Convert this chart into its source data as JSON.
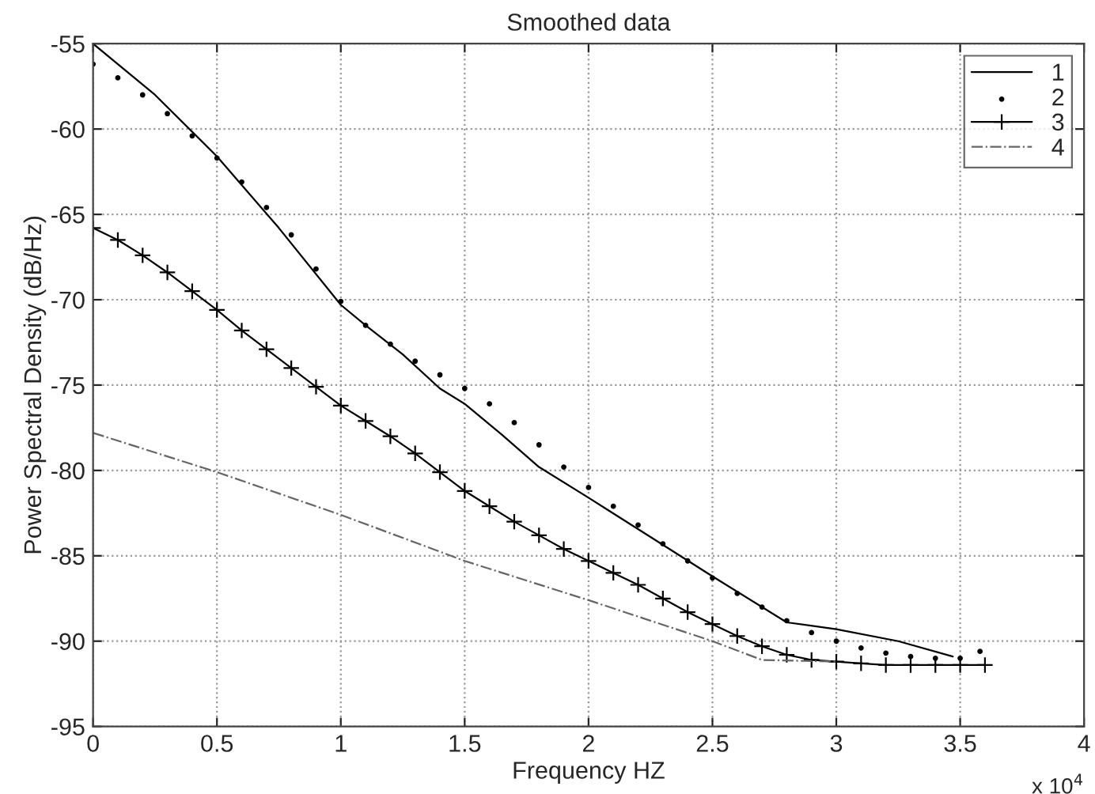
{
  "chart_data": {
    "type": "line",
    "title": "Smoothed data",
    "xlabel": "Frequency HZ",
    "ylabel": "Power Spectral Density (dB/Hz)",
    "xlim": [
      0,
      4
    ],
    "xticks": [
      0,
      0.5,
      1,
      1.5,
      2,
      2.5,
      3,
      3.5,
      4
    ],
    "ylim": [
      -95,
      -55
    ],
    "yticks": [
      -95,
      -90,
      -85,
      -80,
      -75,
      -70,
      -65,
      -60,
      -55
    ],
    "grid": true,
    "legend": "top right",
    "annotations": [
      "x 10$^{4}$"
    ],
    "series": [
      {
        "name": "1",
        "color": "#000000",
        "marker": "none",
        "line_style": "solid",
        "x": [
          0,
          0.25,
          0.5,
          0.75,
          1.0,
          1.1,
          1.25,
          1.4,
          1.5,
          1.65,
          1.8,
          2.0,
          2.25,
          2.5,
          2.8,
          3.0,
          3.25,
          3.47
        ],
        "values": [
          -55.0,
          -58.0,
          -61.6,
          -65.8,
          -70.3,
          -71.5,
          -73.2,
          -75.2,
          -76.1,
          -77.9,
          -79.8,
          -81.6,
          -83.9,
          -86.2,
          -88.9,
          -89.3,
          -90.0,
          -90.9
        ]
      },
      {
        "name": "2",
        "type": "scatter",
        "color": "#000000",
        "marker": "circle",
        "x": [
          0,
          0.1,
          0.2,
          0.3,
          0.4,
          0.5,
          0.6,
          0.7,
          0.8,
          0.9,
          1.0,
          1.1,
          1.2,
          1.3,
          1.4,
          1.5,
          1.6,
          1.7,
          1.8,
          1.9,
          2.0,
          2.1,
          2.2,
          2.3,
          2.4,
          2.5,
          2.6,
          2.7,
          2.8,
          2.9,
          3.0,
          3.1,
          3.2,
          3.3,
          3.4,
          3.5,
          3.58
        ],
        "values": [
          -56.2,
          -57.0,
          -58.0,
          -59.1,
          -60.4,
          -61.7,
          -63.1,
          -64.6,
          -66.2,
          -68.2,
          -70.1,
          -71.5,
          -72.6,
          -73.6,
          -74.4,
          -75.2,
          -76.1,
          -77.2,
          -78.5,
          -79.8,
          -81.0,
          -82.1,
          -83.2,
          -84.3,
          -85.3,
          -86.3,
          -87.2,
          -88.0,
          -88.8,
          -89.5,
          -90.0,
          -90.4,
          -90.7,
          -90.9,
          -91.0,
          -91.0,
          -90.6
        ]
      },
      {
        "name": "3",
        "color": "#000000",
        "marker": "cross",
        "line_style": "solid",
        "x": [
          0,
          0.1,
          0.2,
          0.3,
          0.4,
          0.5,
          0.6,
          0.7,
          0.8,
          0.9,
          1.0,
          1.1,
          1.2,
          1.3,
          1.4,
          1.5,
          1.6,
          1.7,
          1.8,
          1.9,
          2.0,
          2.1,
          2.2,
          2.3,
          2.4,
          2.5,
          2.6,
          2.7,
          2.8,
          2.9,
          3.0,
          3.1,
          3.2,
          3.3,
          3.4,
          3.5,
          3.6
        ],
        "values": [
          -65.8,
          -66.5,
          -67.4,
          -68.4,
          -69.5,
          -70.6,
          -71.8,
          -72.9,
          -74.0,
          -75.1,
          -76.2,
          -77.1,
          -78.0,
          -79.0,
          -80.1,
          -81.2,
          -82.1,
          -83.0,
          -83.8,
          -84.6,
          -85.3,
          -86.0,
          -86.7,
          -87.5,
          -88.3,
          -89.0,
          -89.7,
          -90.3,
          -90.8,
          -91.1,
          -91.2,
          -91.3,
          -91.4,
          -91.4,
          -91.4,
          -91.4,
          -91.4
        ]
      },
      {
        "name": "4",
        "color": "#666666",
        "marker": "none",
        "line_style": "dashdot",
        "x": [
          0,
          0.5,
          1.0,
          1.5,
          2.0,
          2.25,
          2.5,
          2.7,
          3.0
        ],
        "values": [
          -77.8,
          -80.1,
          -82.6,
          -85.3,
          -87.6,
          -88.8,
          -90.0,
          -91.1,
          -91.2
        ]
      }
    ]
  }
}
